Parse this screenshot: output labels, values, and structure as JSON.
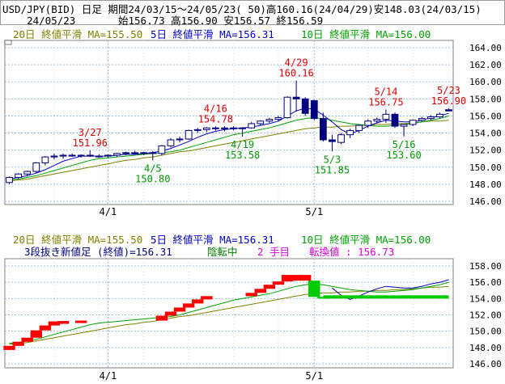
{
  "header": {
    "line1": "USD/JPY(BID) 日足 期間24/03/15～24/05/23( 50)高160.16(24/04/29)安148.03(24/03/15)",
    "line2": "    24/05/23       始156.73 高156.90 安156.57 終156.59"
  },
  "colors": {
    "ma20": "#808000",
    "ma5": "#0000c0",
    "ma10": "#00a000",
    "high": "#e00000",
    "low": "#009900",
    "candle_down": "#000080",
    "candle_up": "#ffffff",
    "gap_red": "#ff0000",
    "gap_green": "#00cc00",
    "grid": "#a0c0e0",
    "magenta": "#e000e0"
  },
  "upper_panel": {
    "ma_legend": [
      {
        "text": "20日 終値平滑 MA=155.50",
        "color": "ma20"
      },
      {
        "text": "5日 終値平滑 MA=156.31",
        "color": "ma5"
      },
      {
        "text": "10日 終値平滑 MA=156.00",
        "color": "ma10"
      }
    ],
    "y_ticks": [
      "164.00",
      "162.00",
      "160.00",
      "158.00",
      "156.00",
      "154.00",
      "152.00",
      "150.00",
      "148.00",
      "146.00"
    ],
    "x_ticks": [
      "4/1",
      "5/1"
    ]
  },
  "lower_panel": {
    "ma_legend": [
      {
        "text": "20日 終値平滑 MA=155.50",
        "color": "ma20"
      },
      {
        "text": "5日 終値平滑 MA=156.31",
        "color": "ma5"
      },
      {
        "text": "10日 終値平滑 MA=156.00",
        "color": "ma10"
      }
    ],
    "status": {
      "label": "3段抜き新値足 (終値)=156.31",
      "state": "陰転中",
      "count": "2 手目",
      "reversal": "転換値 : 156.73"
    },
    "y_ticks": [
      "158.00",
      "156.00",
      "154.00",
      "152.00",
      "150.00",
      "148.00",
      "146.00"
    ],
    "x_ticks": [
      "4/1",
      "5/1"
    ]
  },
  "annotations": [
    {
      "date": "3/27",
      "value": "151.96",
      "kind": "high",
      "day": 9
    },
    {
      "date": "4/5",
      "value": "150.80",
      "kind": "low",
      "day": 16
    },
    {
      "date": "4/16",
      "value": "154.78",
      "kind": "high",
      "day": 23
    },
    {
      "date": "4/19",
      "value": "153.58",
      "kind": "low",
      "day": 26
    },
    {
      "date": "4/29",
      "value": "160.16",
      "kind": "high",
      "day": 32
    },
    {
      "date": "5/3",
      "value": "151.85",
      "kind": "low",
      "day": 36
    },
    {
      "date": "5/14",
      "value": "156.75",
      "kind": "high",
      "day": 42
    },
    {
      "date": "5/16",
      "value": "153.60",
      "kind": "low",
      "day": 44
    },
    {
      "date": "5/23",
      "value": "156.90",
      "kind": "high",
      "day": 49
    }
  ],
  "chart_data": {
    "type": "candlestick",
    "days": 50,
    "tick_days": {
      "4/1": 11,
      "5/1": 34
    },
    "upper_ylim": [
      146,
      165
    ],
    "lower_ylim": [
      146,
      159
    ],
    "candles": [
      [
        148.2,
        148.9,
        148.03,
        148.8
      ],
      [
        148.8,
        149.3,
        148.6,
        149.2
      ],
      [
        149.2,
        149.6,
        148.9,
        149.5
      ],
      [
        149.5,
        150.6,
        149.3,
        150.5
      ],
      [
        150.5,
        151.3,
        150.2,
        151.2
      ],
      [
        151.2,
        151.6,
        150.9,
        151.3
      ],
      [
        151.3,
        151.6,
        151.0,
        151.4
      ],
      [
        151.4,
        151.6,
        151.2,
        151.3
      ],
      [
        151.3,
        151.5,
        151.1,
        151.4
      ],
      [
        151.4,
        151.96,
        151.2,
        151.3
      ],
      [
        151.3,
        151.5,
        151.1,
        151.3
      ],
      [
        151.3,
        151.5,
        151.1,
        151.4
      ],
      [
        151.4,
        151.7,
        151.2,
        151.6
      ],
      [
        151.6,
        151.8,
        151.4,
        151.7
      ],
      [
        151.7,
        151.9,
        151.5,
        151.6
      ],
      [
        151.6,
        151.8,
        151.4,
        151.7
      ],
      [
        151.7,
        151.9,
        150.8,
        151.6
      ],
      [
        151.6,
        152.6,
        151.4,
        152.5
      ],
      [
        152.5,
        153.4,
        152.3,
        153.2
      ],
      [
        153.2,
        153.6,
        152.9,
        153.3
      ],
      [
        153.3,
        154.4,
        153.2,
        154.3
      ],
      [
        154.3,
        154.6,
        154.0,
        154.4
      ],
      [
        154.4,
        154.7,
        154.1,
        154.6
      ],
      [
        154.6,
        154.78,
        154.3,
        154.5
      ],
      [
        154.5,
        154.8,
        154.2,
        154.6
      ],
      [
        154.6,
        154.8,
        154.3,
        154.6
      ],
      [
        154.6,
        154.7,
        153.58,
        154.6
      ],
      [
        154.6,
        155.3,
        154.5,
        155.1
      ],
      [
        155.1,
        155.5,
        154.9,
        155.4
      ],
      [
        155.4,
        155.8,
        155.2,
        155.6
      ],
      [
        155.6,
        156.0,
        155.4,
        155.8
      ],
      [
        155.8,
        158.3,
        155.7,
        158.2
      ],
      [
        158.2,
        160.16,
        156.5,
        158.0
      ],
      [
        158.0,
        158.2,
        156.0,
        156.3
      ],
      [
        157.8,
        157.9,
        155.5,
        155.7
      ],
      [
        155.7,
        156.4,
        153.0,
        153.2
      ],
      [
        153.2,
        153.8,
        151.85,
        153.0
      ],
      [
        152.9,
        154.0,
        152.7,
        153.8
      ],
      [
        153.8,
        154.5,
        153.4,
        154.3
      ],
      [
        154.3,
        155.0,
        154.0,
        154.9
      ],
      [
        154.9,
        155.6,
        154.6,
        155.4
      ],
      [
        155.4,
        155.8,
        155.1,
        155.6
      ],
      [
        155.6,
        156.75,
        155.2,
        156.2
      ],
      [
        156.2,
        156.4,
        154.6,
        154.8
      ],
      [
        154.8,
        155.0,
        153.6,
        155.0
      ],
      [
        155.0,
        155.6,
        154.8,
        155.5
      ],
      [
        155.5,
        155.9,
        155.3,
        155.7
      ],
      [
        155.7,
        156.1,
        155.5,
        155.9
      ],
      [
        155.9,
        156.4,
        155.7,
        156.2
      ],
      [
        156.73,
        156.9,
        156.57,
        156.59
      ]
    ],
    "ma5": [
      148.6,
      148.8,
      149.0,
      149.3,
      149.7,
      150.2,
      150.7,
      151.0,
      151.3,
      151.3,
      151.3,
      151.3,
      151.4,
      151.5,
      151.5,
      151.6,
      151.7,
      151.9,
      152.2,
      152.6,
      153.0,
      153.5,
      153.9,
      154.2,
      154.4,
      154.5,
      154.6,
      154.7,
      154.9,
      155.1,
      155.4,
      156.0,
      156.6,
      156.9,
      156.8,
      156.1,
      155.3,
      154.4,
      153.9,
      154.3,
      154.8,
      155.2,
      155.5,
      155.4,
      155.3,
      155.3,
      155.5,
      155.8,
      156.0,
      156.31
    ],
    "ma10": [
      148.5,
      148.6,
      148.8,
      149.0,
      149.3,
      149.6,
      149.9,
      150.2,
      150.5,
      150.8,
      151.0,
      151.1,
      151.2,
      151.3,
      151.4,
      151.5,
      151.6,
      151.7,
      151.8,
      152.0,
      152.3,
      152.6,
      152.9,
      153.2,
      153.5,
      153.8,
      154.0,
      154.2,
      154.4,
      154.6,
      154.9,
      155.2,
      155.5,
      155.7,
      155.8,
      155.7,
      155.5,
      155.3,
      155.1,
      155.0,
      154.9,
      154.8,
      154.8,
      154.9,
      155.0,
      155.1,
      155.3,
      155.5,
      155.7,
      156.0
    ],
    "ma20": [
      148.4,
      148.5,
      148.6,
      148.8,
      149.0,
      149.2,
      149.4,
      149.6,
      149.8,
      150.0,
      150.2,
      150.4,
      150.6,
      150.8,
      150.9,
      151.1,
      151.2,
      151.4,
      151.6,
      151.8,
      151.9,
      152.1,
      152.3,
      152.5,
      152.7,
      152.9,
      153.1,
      153.3,
      153.5,
      153.7,
      153.9,
      154.1,
      154.3,
      154.5,
      154.6,
      154.7,
      154.7,
      154.8,
      154.8,
      154.9,
      154.9,
      155.0,
      155.0,
      155.1,
      155.1,
      155.2,
      155.3,
      155.4,
      155.4,
      155.5
    ],
    "newhigh_bricks": [
      {
        "day": 0,
        "low": 147.7,
        "high": 148.2,
        "up": true
      },
      {
        "day": 1,
        "low": 148.2,
        "high": 148.7,
        "up": true
      },
      {
        "day": 2,
        "low": 148.7,
        "high": 149.2,
        "up": true
      },
      {
        "day": 3,
        "low": 149.2,
        "high": 150.1,
        "up": true
      },
      {
        "day": 4,
        "low": 150.1,
        "high": 150.7,
        "up": true
      },
      {
        "day": 5,
        "low": 150.7,
        "high": 151.2,
        "up": true
      },
      {
        "day": 6,
        "low": 150.9,
        "high": 151.25,
        "up": true
      },
      {
        "day": 8,
        "low": 151.0,
        "high": 151.3,
        "up": true
      },
      {
        "day": 17,
        "low": 151.3,
        "high": 151.9,
        "up": true
      },
      {
        "day": 18,
        "low": 151.9,
        "high": 152.4,
        "up": true
      },
      {
        "day": 19,
        "low": 152.4,
        "high": 152.9,
        "up": true
      },
      {
        "day": 20,
        "low": 152.9,
        "high": 153.4,
        "up": true
      },
      {
        "day": 21,
        "low": 153.4,
        "high": 153.9,
        "up": true
      },
      {
        "day": 22,
        "low": 153.9,
        "high": 154.3,
        "up": true
      },
      {
        "day": 27,
        "low": 154.3,
        "high": 154.7,
        "up": true
      },
      {
        "day": 28,
        "low": 154.7,
        "high": 155.2,
        "up": true
      },
      {
        "day": 29,
        "low": 155.2,
        "high": 155.7,
        "up": true
      },
      {
        "day": 30,
        "low": 155.7,
        "high": 156.1,
        "up": true
      },
      {
        "day": 31,
        "low": 156.1,
        "high": 156.9,
        "up": true
      },
      {
        "day": 32,
        "low": 156.2,
        "high": 156.9,
        "up": true
      },
      {
        "day": 33,
        "low": 156.2,
        "high": 156.9,
        "up": true
      },
      {
        "day": 34,
        "low": 154.2,
        "high": 156.2,
        "up": false
      },
      {
        "day": 35,
        "low": 154.0,
        "high": 154.2,
        "up": false
      }
    ],
    "reversal_band": {
      "start_day": 35,
      "end_day": 49,
      "low": 154.0,
      "high": 154.4
    }
  }
}
